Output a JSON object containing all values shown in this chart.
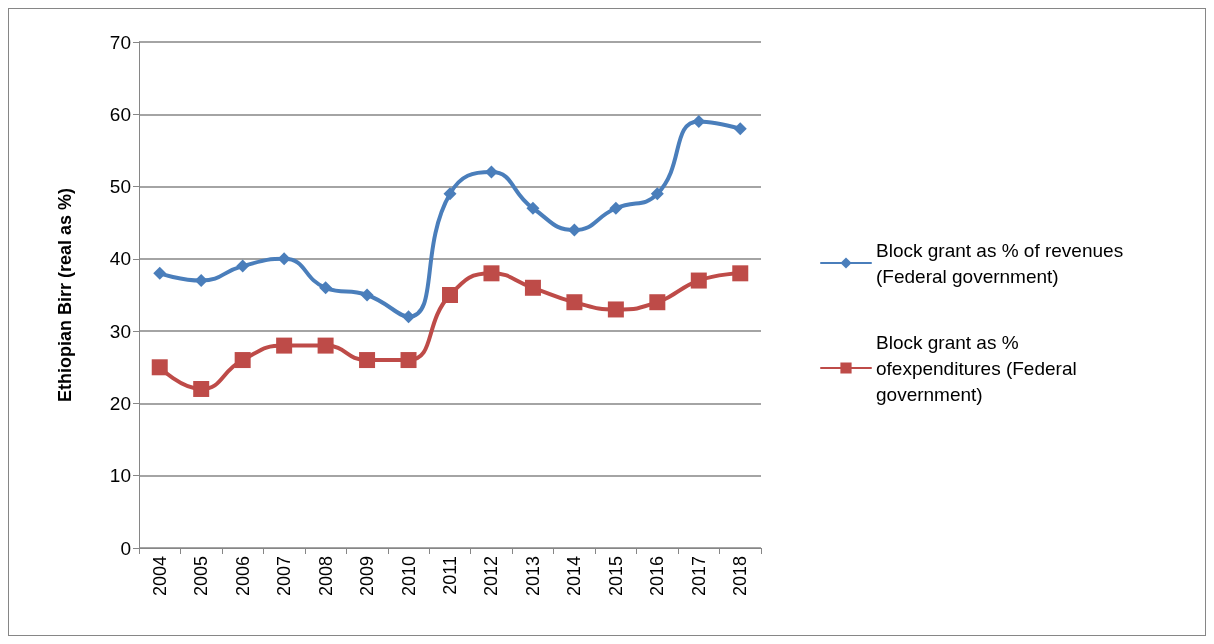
{
  "chart_data": {
    "type": "line",
    "ylabel": "Ethiopian Birr (real as %)",
    "categories": [
      "2004",
      "2005",
      "2006",
      "2007",
      "2008",
      "2009",
      "2010",
      "2011",
      "2012",
      "2013",
      "2014",
      "2015",
      "2016",
      "2017",
      "2018"
    ],
    "series": [
      {
        "name": "Block grant as % of revenues (Federal government)",
        "color": "#4a7ebb",
        "marker": "diamond",
        "values": [
          38,
          37,
          39,
          40,
          36,
          35,
          32,
          49,
          52,
          47,
          44,
          47,
          49,
          59,
          58
        ]
      },
      {
        "name": "Block grant as % ofexpenditures (Federal government)",
        "color": "#be4b48",
        "marker": "square",
        "values": [
          25,
          22,
          26,
          28,
          28,
          26,
          26,
          35,
          38,
          36,
          34,
          33,
          34,
          37,
          38
        ]
      }
    ],
    "ylim": [
      0,
      70
    ],
    "yticks": [
      0,
      10,
      20,
      30,
      40,
      50,
      60,
      70
    ],
    "grid": "y",
    "legend": "right",
    "line_style": "solid"
  }
}
